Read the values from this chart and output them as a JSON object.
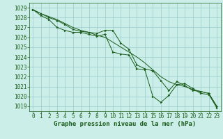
{
  "x": [
    0,
    1,
    2,
    3,
    4,
    5,
    6,
    7,
    8,
    9,
    10,
    11,
    12,
    13,
    14,
    15,
    16,
    17,
    18,
    19,
    20,
    21,
    22,
    23
  ],
  "line_smooth": [
    1028.8,
    1028.4,
    1028.1,
    1027.8,
    1027.4,
    1027.0,
    1026.7,
    1026.5,
    1026.2,
    1026.0,
    1025.5,
    1025.0,
    1024.5,
    1024.0,
    1023.4,
    1022.7,
    1022.0,
    1021.5,
    1021.2,
    1021.0,
    1020.7,
    1020.5,
    1020.3,
    1019.0
  ],
  "line_upper": [
    1028.8,
    1028.4,
    1028.0,
    1027.7,
    1027.3,
    1026.8,
    1026.6,
    1026.5,
    1026.4,
    1026.7,
    1026.7,
    1025.4,
    1024.8,
    1023.2,
    1022.8,
    1022.6,
    1021.6,
    1020.6,
    1021.5,
    1021.1,
    1020.6,
    1020.5,
    1020.3,
    1019.0
  ],
  "line_lower": [
    1028.8,
    1028.2,
    1027.8,
    1027.0,
    1026.7,
    1026.5,
    1026.5,
    1026.3,
    1026.1,
    1026.3,
    1024.5,
    1024.3,
    1024.2,
    1022.8,
    1022.7,
    1020.0,
    1019.4,
    1020.1,
    1021.2,
    1021.3,
    1020.8,
    1020.3,
    1020.2,
    1018.85
  ],
  "bg_color": "#cceee8",
  "plot_bg": "#cceee8",
  "line_color": "#1a5c1a",
  "grid_color": "#99cccc",
  "xlabel": "Graphe pression niveau de la mer (hPa)",
  "ylim_min": 1018.5,
  "ylim_max": 1029.5,
  "ytick_values": [
    1019,
    1020,
    1021,
    1022,
    1023,
    1024,
    1025,
    1026,
    1027,
    1028,
    1029
  ],
  "xtick_values": [
    0,
    1,
    2,
    3,
    4,
    5,
    6,
    7,
    8,
    9,
    10,
    11,
    12,
    13,
    14,
    15,
    16,
    17,
    18,
    19,
    20,
    21,
    22,
    23
  ],
  "font_size_ticks": 5.5,
  "font_size_xlabel": 6.5
}
